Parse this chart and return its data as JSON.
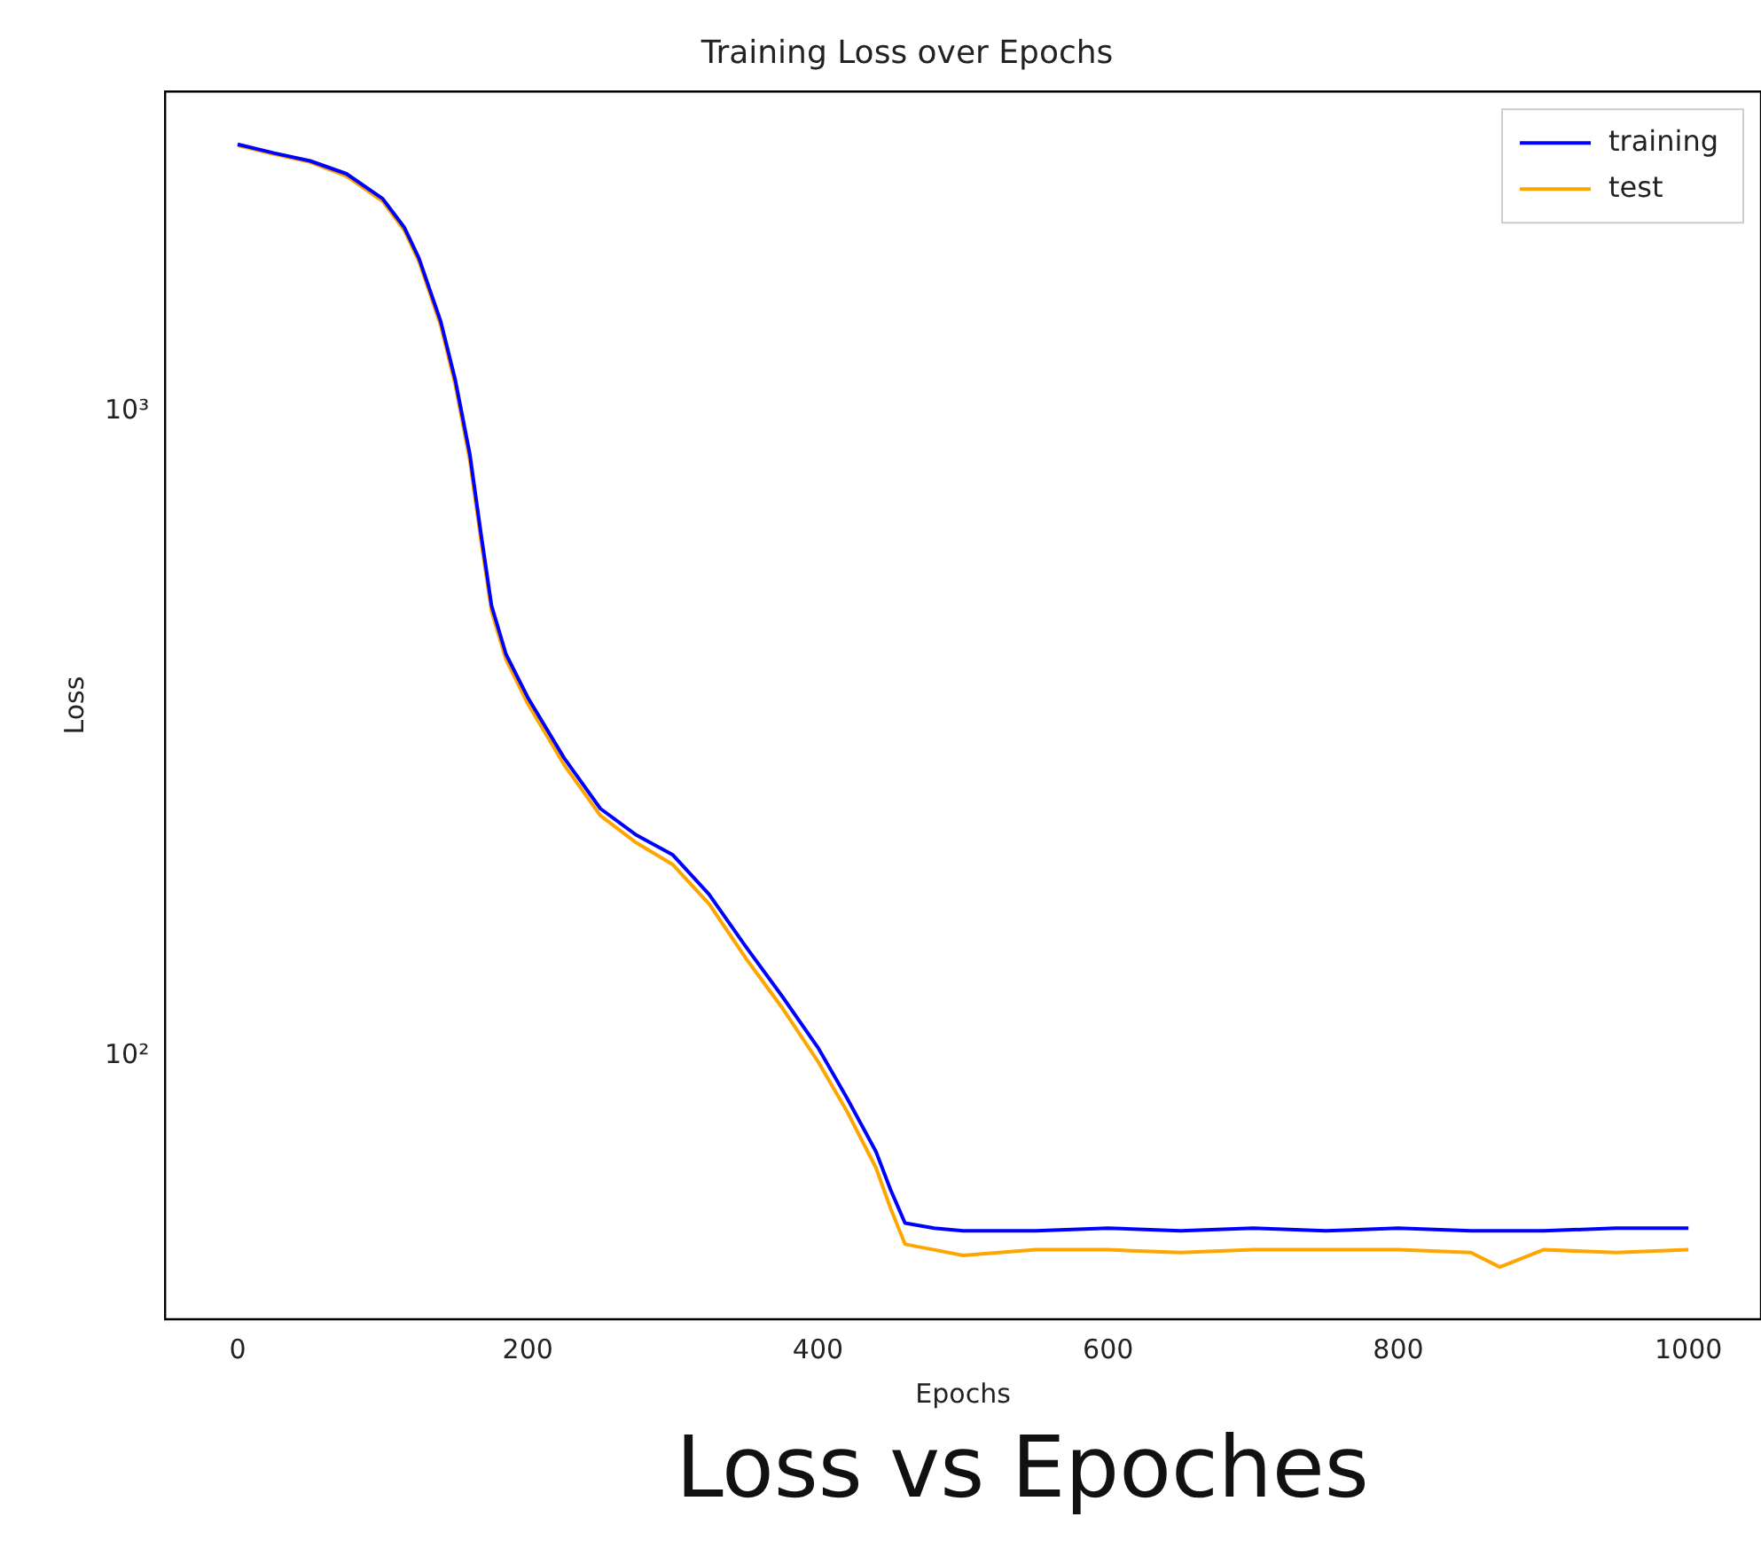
{
  "chart_data": {
    "type": "line",
    "title": "Training Loss over Epochs",
    "xlabel": "Epochs",
    "ylabel": "Loss",
    "log": "y",
    "legend": "top right",
    "xlim": [
      -50,
      1050
    ],
    "xticks": [
      0,
      200,
      400,
      600,
      800,
      1000
    ],
    "ylim": [
      39,
      3140
    ],
    "yticks": [
      {
        "value": 100,
        "label": "10²"
      },
      {
        "value": 1000,
        "label": "10³"
      }
    ],
    "annotations": [
      "Loss vs Epoches"
    ],
    "series": [
      {
        "name": "training",
        "color": "#0000ff",
        "x": [
          0,
          25,
          50,
          75,
          100,
          115,
          125,
          140,
          150,
          160,
          168,
          175,
          185,
          200,
          225,
          250,
          275,
          300,
          325,
          350,
          375,
          400,
          420,
          440,
          450,
          460,
          480,
          500,
          550,
          600,
          650,
          700,
          750,
          800,
          850,
          900,
          950,
          1000
        ],
        "values": [
          2600,
          2520,
          2450,
          2340,
          2140,
          1930,
          1730,
          1380,
          1120,
          860,
          640,
          500,
          420,
          360,
          290,
          242,
          220,
          205,
          178,
          148,
          124,
          103,
          86,
          71,
          62,
          55,
          54,
          53.5,
          53.5,
          54,
          53.5,
          54,
          53.5,
          54,
          53.5,
          53.5,
          54,
          54
        ]
      },
      {
        "name": "test",
        "color": "#ffa500",
        "x": [
          0,
          25,
          50,
          75,
          100,
          115,
          125,
          140,
          150,
          160,
          168,
          175,
          185,
          200,
          225,
          250,
          275,
          300,
          325,
          350,
          375,
          400,
          420,
          440,
          450,
          460,
          480,
          500,
          550,
          600,
          650,
          700,
          750,
          800,
          850,
          870,
          900,
          950,
          1000
        ],
        "values": [
          2590,
          2510,
          2440,
          2320,
          2120,
          1910,
          1710,
          1360,
          1100,
          840,
          625,
          490,
          412,
          352,
          283,
          236,
          214,
          198,
          172,
          142,
          119,
          98,
          82,
          67,
          58,
          51,
          50,
          49,
          50,
          50,
          49.5,
          50,
          50,
          50,
          49.5,
          47,
          50,
          49.5,
          50
        ]
      }
    ]
  }
}
